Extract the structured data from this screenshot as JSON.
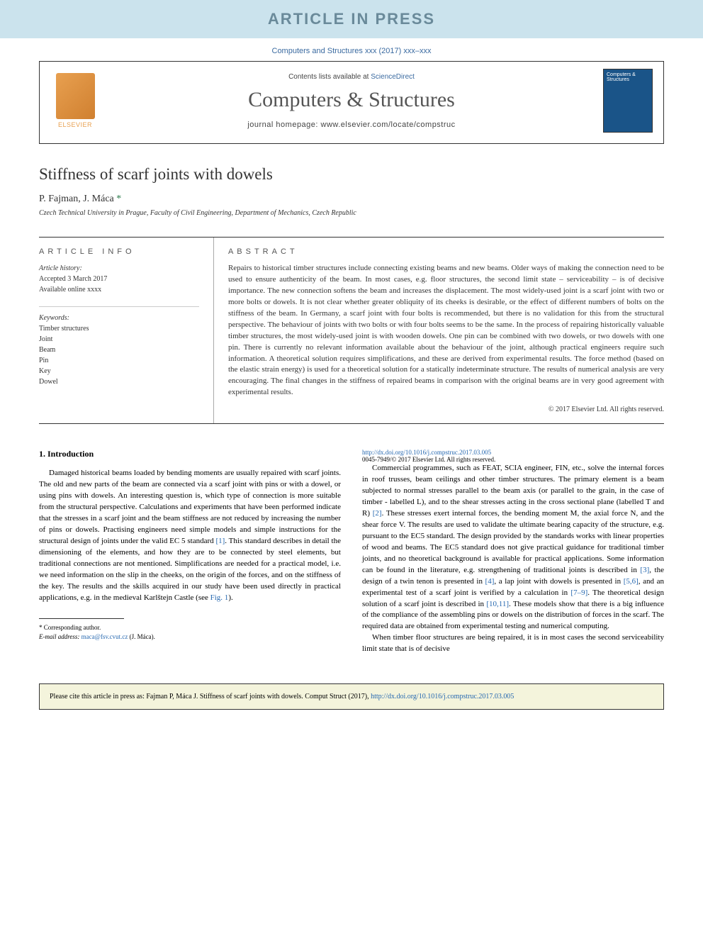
{
  "banner": "ARTICLE IN PRESS",
  "journalRef": "Computers and Structures xxx (2017) xxx–xxx",
  "header": {
    "contentsPrefix": "Contents lists available at ",
    "contentsLink": "ScienceDirect",
    "journalName": "Computers & Structures",
    "homepagePrefix": "journal homepage: ",
    "homepage": "www.elsevier.com/locate/compstruc",
    "elsevierLabel": "ELSEVIER",
    "coverTitle": "Computers & Structures"
  },
  "article": {
    "title": "Stiffness of scarf joints with dowels",
    "authors": "P. Fajman, J. Máca ",
    "corrMark": "*",
    "affiliation": "Czech Technical University in Prague, Faculty of Civil Engineering, Department of Mechanics, Czech Republic"
  },
  "info": {
    "header": "ARTICLE INFO",
    "historyLabel": "Article history:",
    "accepted": "Accepted 3 March 2017",
    "online": "Available online xxxx",
    "keywordsLabel": "Keywords:",
    "keywords": [
      "Timber structures",
      "Joint",
      "Beam",
      "Pin",
      "Key",
      "Dowel"
    ]
  },
  "abstract": {
    "header": "ABSTRACT",
    "text": "Repairs to historical timber structures include connecting existing beams and new beams. Older ways of making the connection need to be used to ensure authenticity of the beam. In most cases, e.g. floor structures, the second limit state – serviceability – is of decisive importance. The new connection softens the beam and increases the displacement. The most widely-used joint is a scarf joint with two or more bolts or dowels. It is not clear whether greater obliquity of its cheeks is desirable, or the effect of different numbers of bolts on the stiffness of the beam. In Germany, a scarf joint with four bolts is recommended, but there is no validation for this from the structural perspective. The behaviour of joints with two bolts or with four bolts seems to be the same. In the process of repairing historically valuable timber structures, the most widely-used joint is with wooden dowels. One pin can be combined with two dowels, or two dowels with one pin. There is currently no relevant information available about the behaviour of the joint, although practical engineers require such information. A theoretical solution requires simplifications, and these are derived from experimental results. The force method (based on the elastic strain energy) is used for a theoretical solution for a statically indeterminate structure. The results of numerical analysis are very encouraging. The final changes in the stiffness of repaired beams in comparison with the original beams are in very good agreement with experimental results.",
    "copyright": "© 2017 Elsevier Ltd. All rights reserved."
  },
  "body": {
    "sectionNum": "1.",
    "sectionTitle": "Introduction",
    "para1a": "Damaged historical beams loaded by bending moments are usually repaired with scarf joints. The old and new parts of the beam are connected via a scarf joint with pins or with a dowel, or using pins with dowels. An interesting question is, which type of connection is more suitable from the structural perspective. Calculations and experiments that have been performed indicate that the stresses in a scarf joint and the beam stiffness are not reduced by increasing the number of pins or dowels. Practising engineers need simple models and simple instructions for the structural design of joints under the valid EC 5 standard ",
    "para1ref1": "[1]",
    "para1b": ". This standard describes in detail the dimensioning of the elements, and how they are to be connected by steel elements, but traditional connections are not mentioned. Simplifications are needed for a practical model, i.e. we need information on the slip in the cheeks, on the origin of the forces, and on the stiffness of the key. The results and the skills acquired in our study have been used directly in practical applications, e.g. in the medieval Karlštejn Castle (see ",
    "para1fig": "Fig. 1",
    "para1c": ").",
    "para2a": "Commercial programmes, such as FEAT, SCIA engineer, FIN, etc., solve the internal forces in roof trusses, beam ceilings and other timber structures. The primary element is a beam subjected to normal stresses parallel to the beam axis (or parallel to the grain, in the case of timber - labelled L), and to the shear stresses acting in the cross sectional plane (labelled T and R) ",
    "para2ref2": "[2]",
    "para2b": ". These stresses exert internal forces, the bending moment M, the axial force N, and the shear force V. The results are used to validate the ultimate bearing capacity of the structure, e.g. pursuant to the EC5 standard. The design provided by the standards works with linear properties of wood and beams. The EC5 standard does not give practical guidance for traditional timber joints, and no theoretical background is available for practical applications. Some information can be found in the literature, e.g. strengthening of traditional joints is described in ",
    "para2ref3": "[3]",
    "para2c": ", the design of a twin tenon is presented in ",
    "para2ref4": "[4]",
    "para2d": ", a lap joint with dowels is presented in ",
    "para2ref56": "[5,6]",
    "para2e": ", and an experimental test of a scarf joint is verified by a calculation in ",
    "para2ref79": "[7–9]",
    "para2f": ". The theoretical design solution of a scarf joint is described in ",
    "para2ref1011": "[10,11]",
    "para2g": ". These models show that there is a big influence of the compliance of the assembling pins or dowels on the distribution of forces in the scarf. The required data are obtained from experimental testing and numerical computing.",
    "para3": "When timber floor structures are being repaired, it is in most cases the second serviceability limit state that is of decisive"
  },
  "footnote": {
    "corrLabel": "* Corresponding author.",
    "emailLabel": "E-mail address: ",
    "email": "maca@fsv.cvut.cz",
    "emailSuffix": " (J. Máca)."
  },
  "doi": {
    "url": "http://dx.doi.org/10.1016/j.compstruc.2017.03.005",
    "issn": "0045-7949/© 2017 Elsevier Ltd. All rights reserved."
  },
  "citation": {
    "prefix": "Please cite this article in press as: Fajman P, Máca J. Stiffness of scarf joints with dowels. Comput Struct (2017), ",
    "link": "http://dx.doi.org/10.1016/j.compstruc.2017.03.005"
  }
}
